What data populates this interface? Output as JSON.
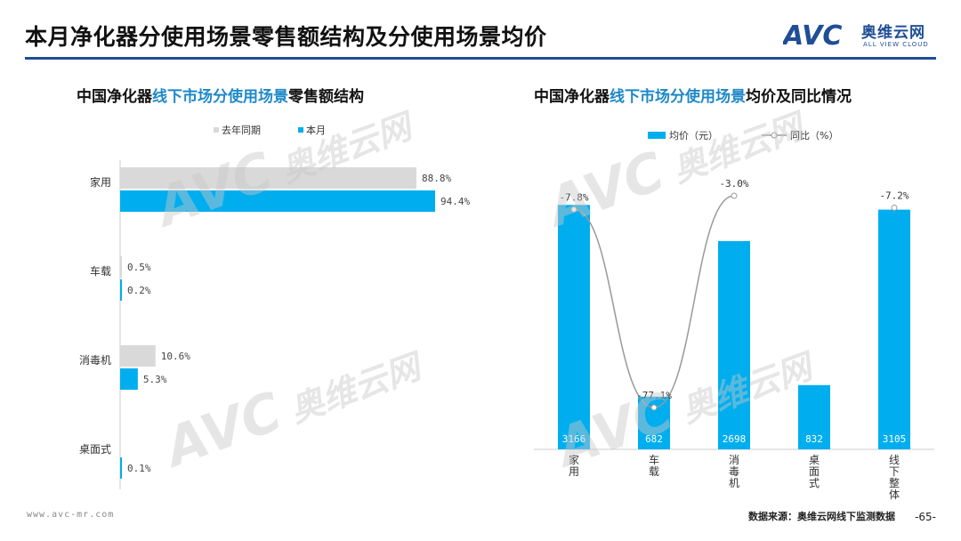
{
  "page": {
    "title": "本月净化器分使用场景零售额结构及分使用场景均价",
    "footer_url": "www.avc-mr.com",
    "footer_source": "数据来源：奥维云网线下监测数据",
    "page_number": "-65-"
  },
  "logo": {
    "mark": "AVC",
    "cn": "奥维云网",
    "en": "ALL VIEW CLOUD"
  },
  "watermark": {
    "mark": "AVC",
    "cn": "奥维云网",
    "en": "ALL VIEW CLOUD"
  },
  "left_chart_title": {
    "prefix": "中国净化器",
    "highlight": "线下市场分使用场景",
    "suffix": "零售额结构"
  },
  "right_chart_title": {
    "prefix": "中国净化器",
    "highlight": "线下市场分使用场景",
    "suffix": "均价及同比情况"
  },
  "colors": {
    "accent": "#00AEEF",
    "prior": "#D9D9D9",
    "line": "#999999",
    "title_rule": "#1F4E96",
    "highlight": "#1E88C7"
  },
  "chart_data": [
    {
      "type": "bar",
      "orientation": "horizontal",
      "categories": [
        "家用",
        "车载",
        "消毒机",
        "桌面式"
      ],
      "series": [
        {
          "name": "去年同期",
          "values": [
            88.8,
            0.5,
            10.6,
            0
          ],
          "labels": [
            "88.8%",
            "0.5%",
            "10.6%",
            ""
          ]
        },
        {
          "name": "本月",
          "values": [
            94.4,
            0.2,
            5.3,
            0.1
          ],
          "labels": [
            "94.4%",
            "0.2%",
            "5.3%",
            "0.1%"
          ]
        }
      ],
      "legend_position": "top",
      "unit": "%"
    },
    {
      "type": "bar+line",
      "categories": [
        "家用",
        "车载",
        "消毒机",
        "桌面式",
        "线下整体"
      ],
      "bar_series": {
        "name": "均价（元）",
        "values": [
          3166,
          682,
          2698,
          832,
          3105
        ]
      },
      "line_series": {
        "name": "同比（%）",
        "values": [
          -7.8,
          -77.1,
          -3.0,
          null,
          -7.2
        ],
        "labels": [
          "-7.8%",
          "-77.1%",
          "-3.0%",
          "",
          "-7.2%"
        ]
      },
      "legend_position": "top"
    }
  ]
}
